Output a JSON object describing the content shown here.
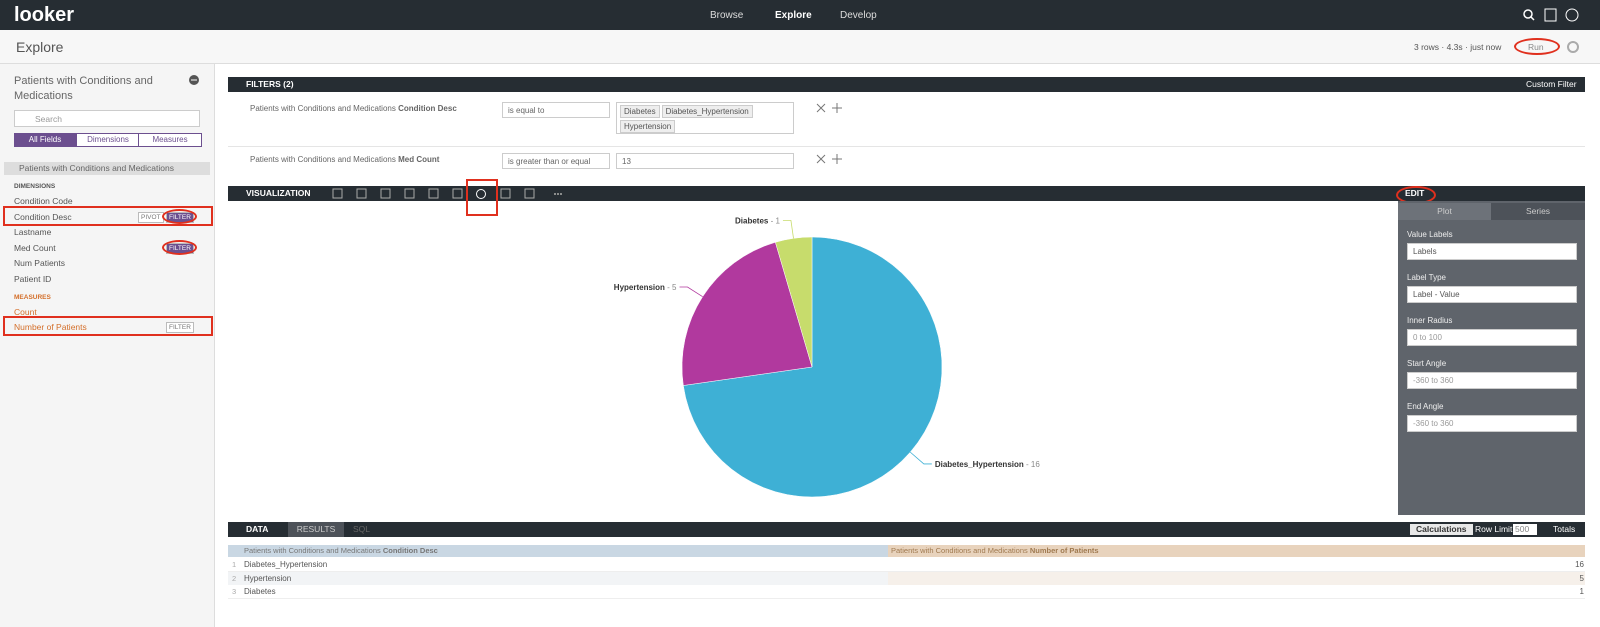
{
  "header": {
    "logo": "looker",
    "nav": [
      "Browse",
      "Explore",
      "Develop"
    ]
  },
  "toolbar": {
    "title": "Explore",
    "status": "3 rows · 4.3s · just now",
    "run": "Run"
  },
  "sidebar": {
    "explore_title": "Patients with Conditions and Medications",
    "search_placeholder": "Search",
    "tabs": [
      "All Fields",
      "Dimensions",
      "Measures"
    ],
    "view": "Patients with Conditions and Medications",
    "dimensions_heading": "DIMENSIONS",
    "dimensions": [
      "Condition Code",
      "Condition Desc",
      "Lastname",
      "Med Count",
      "Num Patients",
      "Patient ID"
    ],
    "measures_heading": "MEASURES",
    "measures": [
      "Count",
      "Number of Patients"
    ],
    "pivot": "PIVOT",
    "filter": "FILTER"
  },
  "filters": {
    "title": "FILTERS (2)",
    "custom": "Custom Filter",
    "rows": [
      {
        "view": "Patients with Conditions and Medications",
        "field": "Condition Desc",
        "operator": "is equal to",
        "values": [
          "Diabetes",
          "Diabetes_Hypertension",
          "Hypertension"
        ]
      },
      {
        "view": "Patients with Conditions and Medications",
        "field": "Med Count",
        "operator": "is greater than or equal",
        "values": [
          "13"
        ]
      }
    ]
  },
  "visualization": {
    "title": "VISUALIZATION",
    "edit": "EDIT",
    "tabs": [
      "Plot",
      "Series"
    ],
    "options": [
      {
        "label": "Value Labels",
        "value": "Labels"
      },
      {
        "label": "Label Type",
        "value": "Label - Value"
      },
      {
        "label": "Inner Radius",
        "placeholder": "0 to 100"
      },
      {
        "label": "Start Angle",
        "placeholder": "-360 to 360"
      },
      {
        "label": "End Angle",
        "placeholder": "-360 to 360"
      }
    ]
  },
  "chart_data": {
    "type": "pie",
    "categories": [
      "Diabetes_Hypertension",
      "Hypertension",
      "Diabetes"
    ],
    "values": [
      16,
      5,
      1
    ],
    "colors": [
      "#3eb0d5",
      "#b1399e",
      "#c7dc6c"
    ],
    "label_separator": " - "
  },
  "data_panel": {
    "title": "DATA",
    "tabs": [
      "RESULTS",
      "SQL"
    ],
    "calculations": "Calculations",
    "row_limit_label": "Row Limit",
    "row_limit": "500",
    "totals": "Totals",
    "columns": [
      {
        "view": "Patients with Conditions and Medications",
        "field": "Condition Desc"
      },
      {
        "view": "Patients with Conditions and Medications",
        "field": "Number of Patients"
      }
    ],
    "rows": [
      [
        1,
        "Diabetes_Hypertension",
        16
      ],
      [
        2,
        "Hypertension",
        5
      ],
      [
        3,
        "Diabetes",
        1
      ]
    ]
  }
}
